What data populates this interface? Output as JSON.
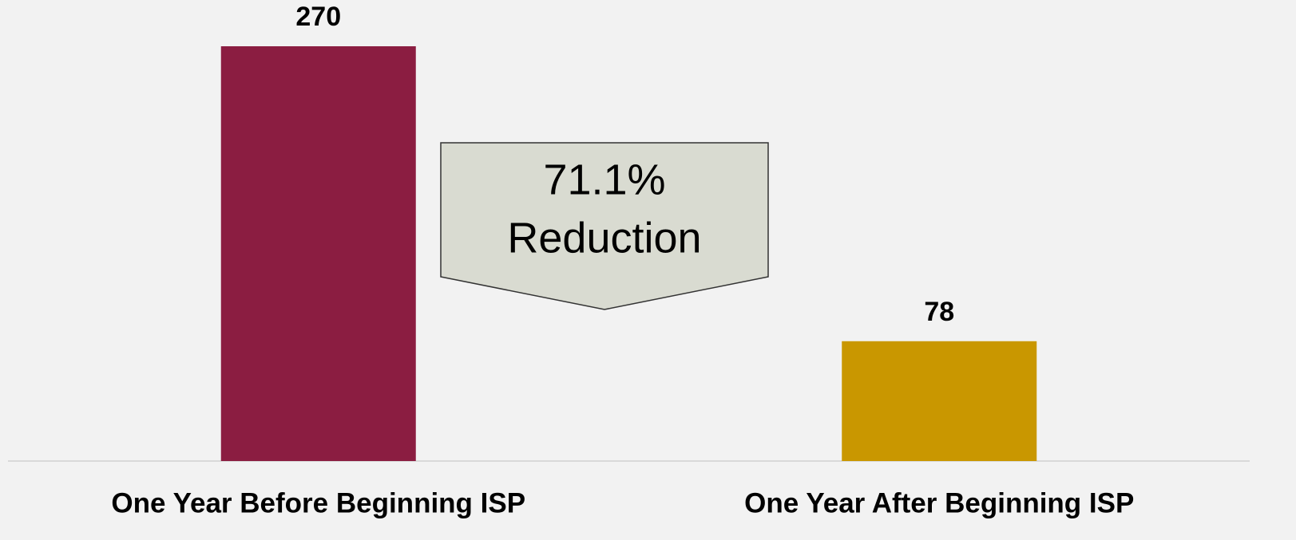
{
  "chart_data": {
    "type": "bar",
    "categories": [
      "One Year Before Beginning ISP",
      "One Year After Beginning ISP"
    ],
    "values": [
      270,
      78
    ],
    "colors": [
      "#8b1d41",
      "#c99700"
    ],
    "annotation": [
      "71.1%",
      "Reduction"
    ]
  }
}
